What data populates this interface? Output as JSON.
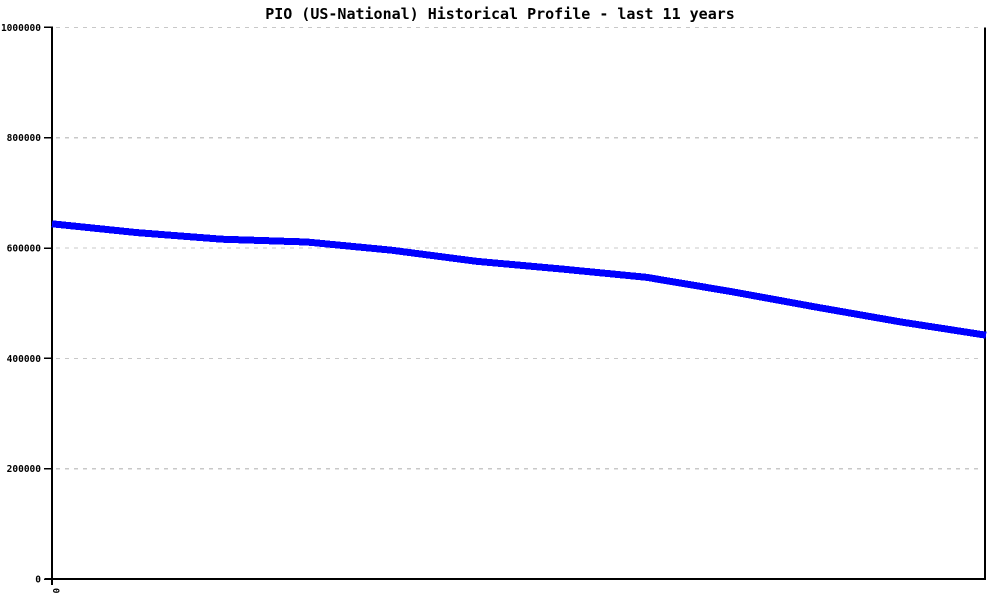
{
  "chart_data": {
    "type": "line",
    "title": "PIO (US-National) Historical Profile - last 11 years",
    "xlabel": "",
    "ylabel": "",
    "x": [
      0,
      1,
      2,
      3,
      4,
      5,
      6,
      7,
      8,
      9,
      10,
      11
    ],
    "series": [
      {
        "name": "PIO (US-National)",
        "color": "#0000ff",
        "values": [
          644000,
          628000,
          616000,
          611000,
          596000,
          576000,
          562000,
          547000,
          521000,
          493000,
          466000,
          442000
        ]
      }
    ],
    "ylim": [
      0,
      1000000
    ],
    "y_ticks": [
      0,
      200000,
      400000,
      600000,
      800000,
      1000000
    ],
    "y_tick_labels": [
      "0",
      "200000",
      "400000",
      "600000",
      "800000",
      "1000000"
    ],
    "x_tick_labels": [
      "0"
    ],
    "grid": "horizontal-dashed",
    "legend": "none",
    "colors": {
      "line": "#0000ff",
      "gridline": "#c8c8c8",
      "axis": "#000000",
      "text": "#000000",
      "background": "#ffffff"
    }
  }
}
